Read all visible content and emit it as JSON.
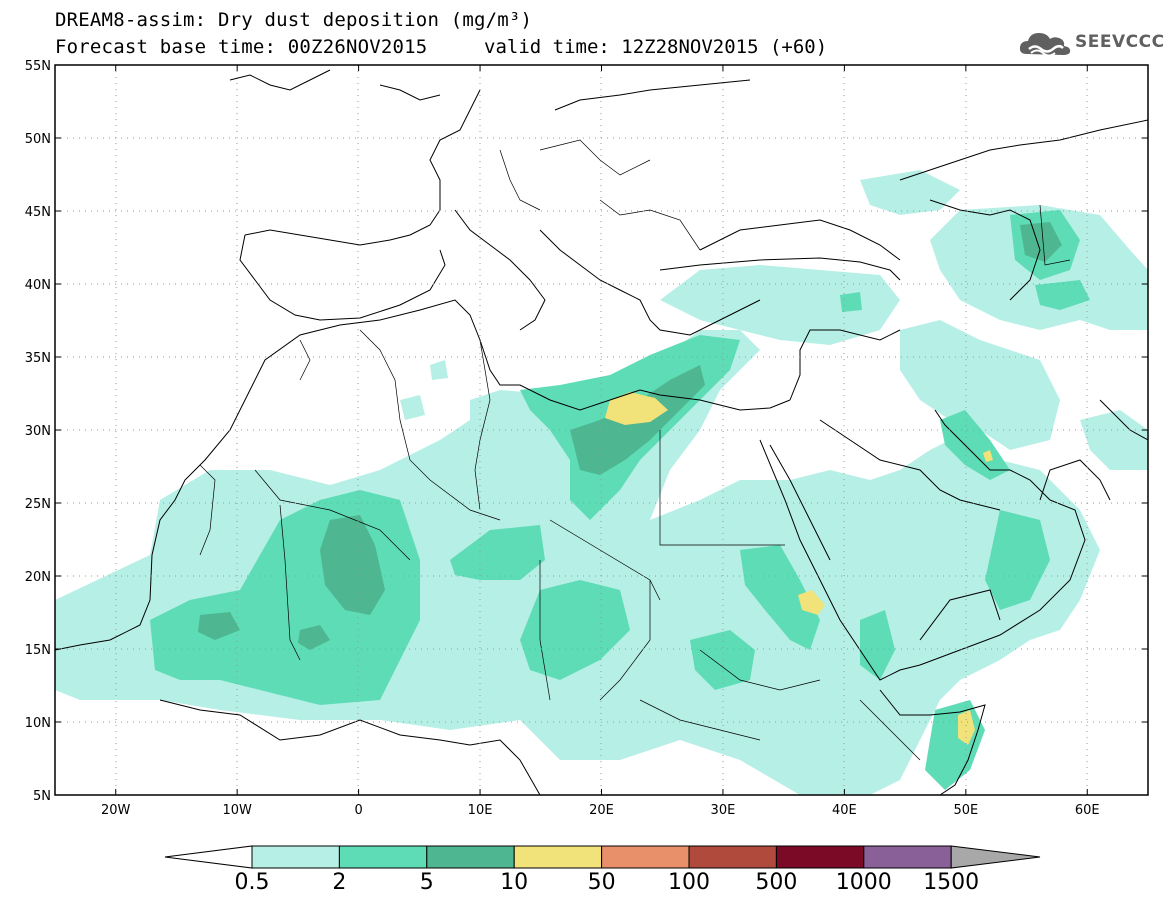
{
  "header": {
    "title": "DREAM8-assim: Dry dust deposition (mg/m³)",
    "base_time": "Forecast base time: 00Z26NOV2015",
    "valid_time": "valid time: 12Z28NOV2015 (+60)",
    "logo_text": "SEEVCCC",
    "logo_icon": "cloud-logo-icon"
  },
  "map": {
    "lon_range": [
      -25,
      65
    ],
    "lat_range": [
      5,
      55
    ],
    "lat_ticks": [
      {
        "value": 55,
        "label": "55N"
      },
      {
        "value": 50,
        "label": "50N"
      },
      {
        "value": 45,
        "label": "45N"
      },
      {
        "value": 40,
        "label": "40N"
      },
      {
        "value": 35,
        "label": "35N"
      },
      {
        "value": 30,
        "label": "30N"
      },
      {
        "value": 25,
        "label": "25N"
      },
      {
        "value": 20,
        "label": "20N"
      },
      {
        "value": 15,
        "label": "15N"
      },
      {
        "value": 10,
        "label": "10N"
      },
      {
        "value": 5,
        "label": "5N"
      }
    ],
    "lon_ticks": [
      {
        "value": -20,
        "label": "20W"
      },
      {
        "value": -10,
        "label": "10W"
      },
      {
        "value": 0,
        "label": "0"
      },
      {
        "value": 10,
        "label": "10E"
      },
      {
        "value": 20,
        "label": "20E"
      },
      {
        "value": 30,
        "label": "30E"
      },
      {
        "value": 40,
        "label": "40E"
      },
      {
        "value": 50,
        "label": "50E"
      },
      {
        "value": 60,
        "label": "60E"
      }
    ],
    "grid": "dotted"
  },
  "colorbar": {
    "under_color": "#ffffff",
    "over_color": "#a8a8a8",
    "bins": [
      {
        "color": "#b6efe6",
        "label": "0.5"
      },
      {
        "color": "#5ddcb5",
        "label": "2"
      },
      {
        "color": "#4eb690",
        "label": "5"
      },
      {
        "color": "#f2e27a",
        "label": "10"
      },
      {
        "color": "#e8906a",
        "label": "50"
      },
      {
        "color": "#b04a3c",
        "label": "100"
      },
      {
        "color": "#7a0a26",
        "label": "500"
      },
      {
        "color": "#8a6098",
        "label": "1000"
      },
      {
        "color": "#a8a8a8",
        "label": "1500"
      }
    ]
  }
}
